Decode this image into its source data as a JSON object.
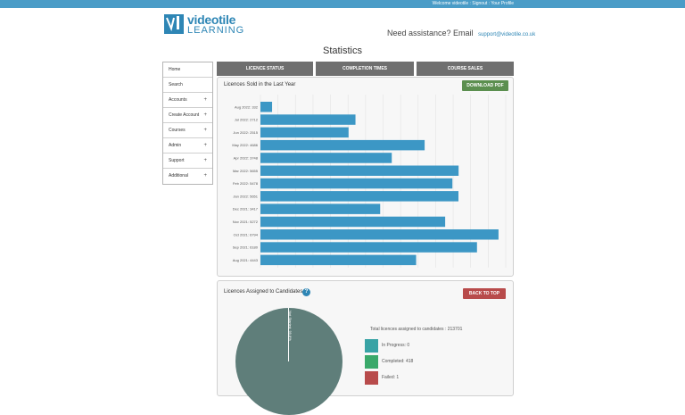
{
  "topbar": {
    "text": "Welcome videotile : Signout : Your Profile"
  },
  "logo": {
    "word": "videotile",
    "sub": "LEARNING",
    "trademark": "™"
  },
  "header": {
    "assist_text": "Need assistance? Email",
    "email": "support@videotile.co.uk"
  },
  "page": {
    "title": "Statistics"
  },
  "sidebar": {
    "items": [
      {
        "label": "Home",
        "plus": ""
      },
      {
        "label": "Search",
        "plus": ""
      },
      {
        "label": "Accounts",
        "plus": "+"
      },
      {
        "label": "Create Account",
        "plus": "+"
      },
      {
        "label": "Courses",
        "plus": "+"
      },
      {
        "label": "Admin",
        "plus": "+"
      },
      {
        "label": "Support",
        "plus": "+"
      },
      {
        "label": "Additional",
        "plus": "+"
      }
    ]
  },
  "tabs": [
    {
      "label": "LICENCE STATUS"
    },
    {
      "label": "COMPLETION TIMES"
    },
    {
      "label": "COURSE SALES"
    }
  ],
  "sales_panel": {
    "title": "Licences Sold in the Last Year",
    "download_label": "DOWNLOAD PDF"
  },
  "candidates_panel": {
    "title": "Licences Assigned to Candidates",
    "help_icon": "?",
    "back_label": "BACK TO TOP",
    "total_text": "Total licences assigned to candidates : 213701",
    "pie_label": "Not Started: 99.8%"
  },
  "colors": {
    "bar": "#3c97c5",
    "accent": "#4a9cc7",
    "pie": "#5f7e7a",
    "in_progress": "#38a3a5",
    "completed": "#3aa96a",
    "failed": "#b84b4b",
    "download_btn": "#5b8f4f",
    "back_btn": "#b84b4b"
  },
  "chart_data": {
    "type": "bar",
    "orientation": "horizontal",
    "categories": [
      "Aug 2022: 332",
      "Jul 2022: 2712",
      "Jun 2022: 2515",
      "May 2022: 4686",
      "Apr 2022: 3748",
      "Mar 2022: 5655",
      "Feb 2022: 5478",
      "Jan 2022: 5651",
      "Dec 2021: 3417",
      "Nov 2021: 5272",
      "Oct 2021: 6794",
      "Sep 2021: 6180",
      "Aug 2021: 4443"
    ],
    "values": [
      332,
      2712,
      2515,
      4686,
      3748,
      5655,
      5478,
      5651,
      3417,
      5272,
      6794,
      6180,
      4443
    ],
    "xlim": [
      0,
      7000
    ],
    "grid": true
  },
  "legend": [
    {
      "label": "In Progress: 0",
      "color": "#38a3a5"
    },
    {
      "label": "Completed: 418",
      "color": "#3aa96a"
    },
    {
      "label": "Failed: 1",
      "color": "#b84b4b"
    }
  ],
  "icons": {
    "help": "help-icon",
    "plus": "plus-icon"
  }
}
